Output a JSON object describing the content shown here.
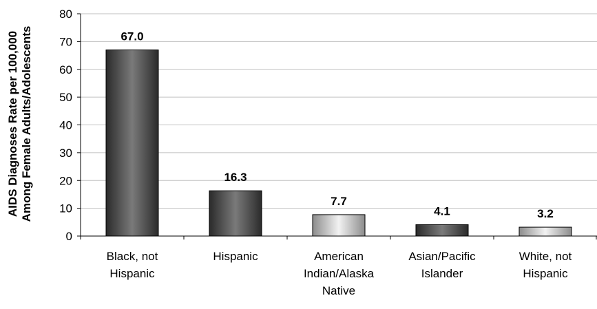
{
  "chart_data": {
    "type": "bar",
    "categories": [
      [
        "Black, not",
        "Hispanic"
      ],
      [
        "Hispanic"
      ],
      [
        "American",
        "Indian/Alaska",
        "Native"
      ],
      [
        "Asian/Pacific",
        "Islander"
      ],
      [
        "White, not",
        "Hispanic"
      ]
    ],
    "values": [
      67.0,
      16.3,
      7.7,
      4.1,
      3.2
    ],
    "data_labels": [
      "67.0",
      "16.3",
      "7.7",
      "4.1",
      "3.2"
    ],
    "ylabel_lines": [
      "AIDS Diagnoses Rate per 100,000",
      "Among Female Adults/Adolescents"
    ],
    "ylim": [
      0,
      80
    ],
    "yticks": [
      0,
      10,
      20,
      30,
      40,
      50,
      60,
      70,
      80
    ],
    "grid": true,
    "bar_styles": [
      "dark",
      "dark",
      "light",
      "dark",
      "light"
    ],
    "colors": {
      "dark_edge": "#2b2b2b",
      "dark_mid": "#7a7a7a",
      "light_edge": "#8c8c8c",
      "light_mid": "#f2f2f2",
      "grid": "#c0c0c0",
      "axis": "#000000"
    }
  }
}
